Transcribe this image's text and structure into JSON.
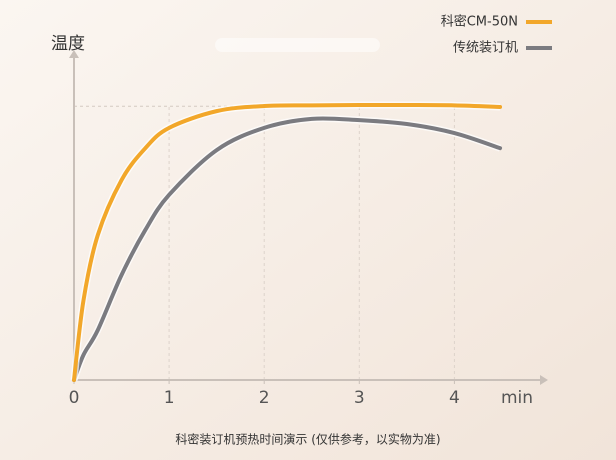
{
  "chart_data": {
    "type": "line",
    "y_label": "温度",
    "x_label": "min",
    "caption": "科密装订机预热时间演示 (仅供参考，以实物为准)",
    "x": [
      0,
      0.1,
      0.25,
      0.5,
      0.75,
      1,
      1.5,
      2,
      2.5,
      3,
      3.5,
      4,
      4.48
    ],
    "series": [
      {
        "name": "科密CM-50N",
        "color": "#f2a72a",
        "values": [
          0,
          24.8,
          45,
          62.1,
          72,
          78.3,
          83.5,
          85.1,
          85.3,
          85.4,
          85.4,
          85.3,
          84.8
        ]
      },
      {
        "name": "传统装订机",
        "color": "#7b7b80",
        "values": [
          0,
          7.8,
          15.5,
          32.6,
          46.6,
          57.5,
          71.4,
          78.3,
          81.1,
          80.7,
          79.5,
          76.7,
          72.0
        ]
      }
    ],
    "xlim": [
      0,
      4.9
    ],
    "ylim": [
      0,
      100
    ],
    "xticks": [
      0,
      1,
      2,
      3,
      4
    ],
    "reference_line": 85,
    "grid": true,
    "legend": "top-right"
  }
}
